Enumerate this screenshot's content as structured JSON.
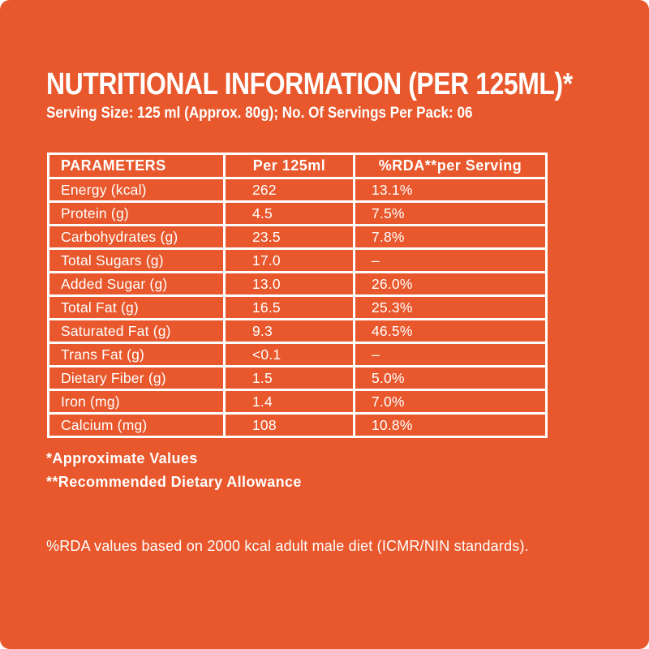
{
  "page": {
    "card_bg": "#E8582C",
    "text_color": "#FFFFFF",
    "border_color": "#FFFFFF"
  },
  "header": {
    "title": "NUTRITIONAL INFORMATION (PER 125ML)*",
    "serving_info": "Serving Size: 125 ml (Approx. 80g); No. Of Servings Per Pack: 06"
  },
  "table": {
    "columns": [
      "PARAMETERS",
      "Per 125ml",
      "%RDA**per Serving"
    ],
    "rows": [
      {
        "parameter": "Energy (kcal)",
        "per_125ml": "262",
        "rda_per_serving": "13.1%"
      },
      {
        "parameter": "Protein (g)",
        "per_125ml": "4.5",
        "rda_per_serving": "7.5%"
      },
      {
        "parameter": "Carbohydrates (g)",
        "per_125ml": "23.5",
        "rda_per_serving": "7.8%"
      },
      {
        "parameter": "Total Sugars (g)",
        "per_125ml": "17.0",
        "rda_per_serving": "–"
      },
      {
        "parameter": "Added Sugar (g)",
        "per_125ml": "13.0",
        "rda_per_serving": "26.0%"
      },
      {
        "parameter": "Total Fat (g)",
        "per_125ml": "16.5",
        "rda_per_serving": "25.3%"
      },
      {
        "parameter": "Saturated Fat (g)",
        "per_125ml": "9.3",
        "rda_per_serving": "46.5%"
      },
      {
        "parameter": "Trans Fat (g)",
        "per_125ml": "<0.1",
        "rda_per_serving": "–"
      },
      {
        "parameter": "Dietary Fiber (g)",
        "per_125ml": "1.5",
        "rda_per_serving": "5.0%"
      },
      {
        "parameter": "Iron (mg)",
        "per_125ml": "1.4",
        "rda_per_serving": "7.0%"
      },
      {
        "parameter": "Calcium (mg)",
        "per_125ml": "108",
        "rda_per_serving": "10.8%"
      }
    ]
  },
  "footnotes": {
    "approximate": "*Approximate Values",
    "rda": "**Recommended Dietary Allowance"
  },
  "disclaimer": "%RDA values based on 2000 kcal adult male diet (ICMR/NIN standards)."
}
